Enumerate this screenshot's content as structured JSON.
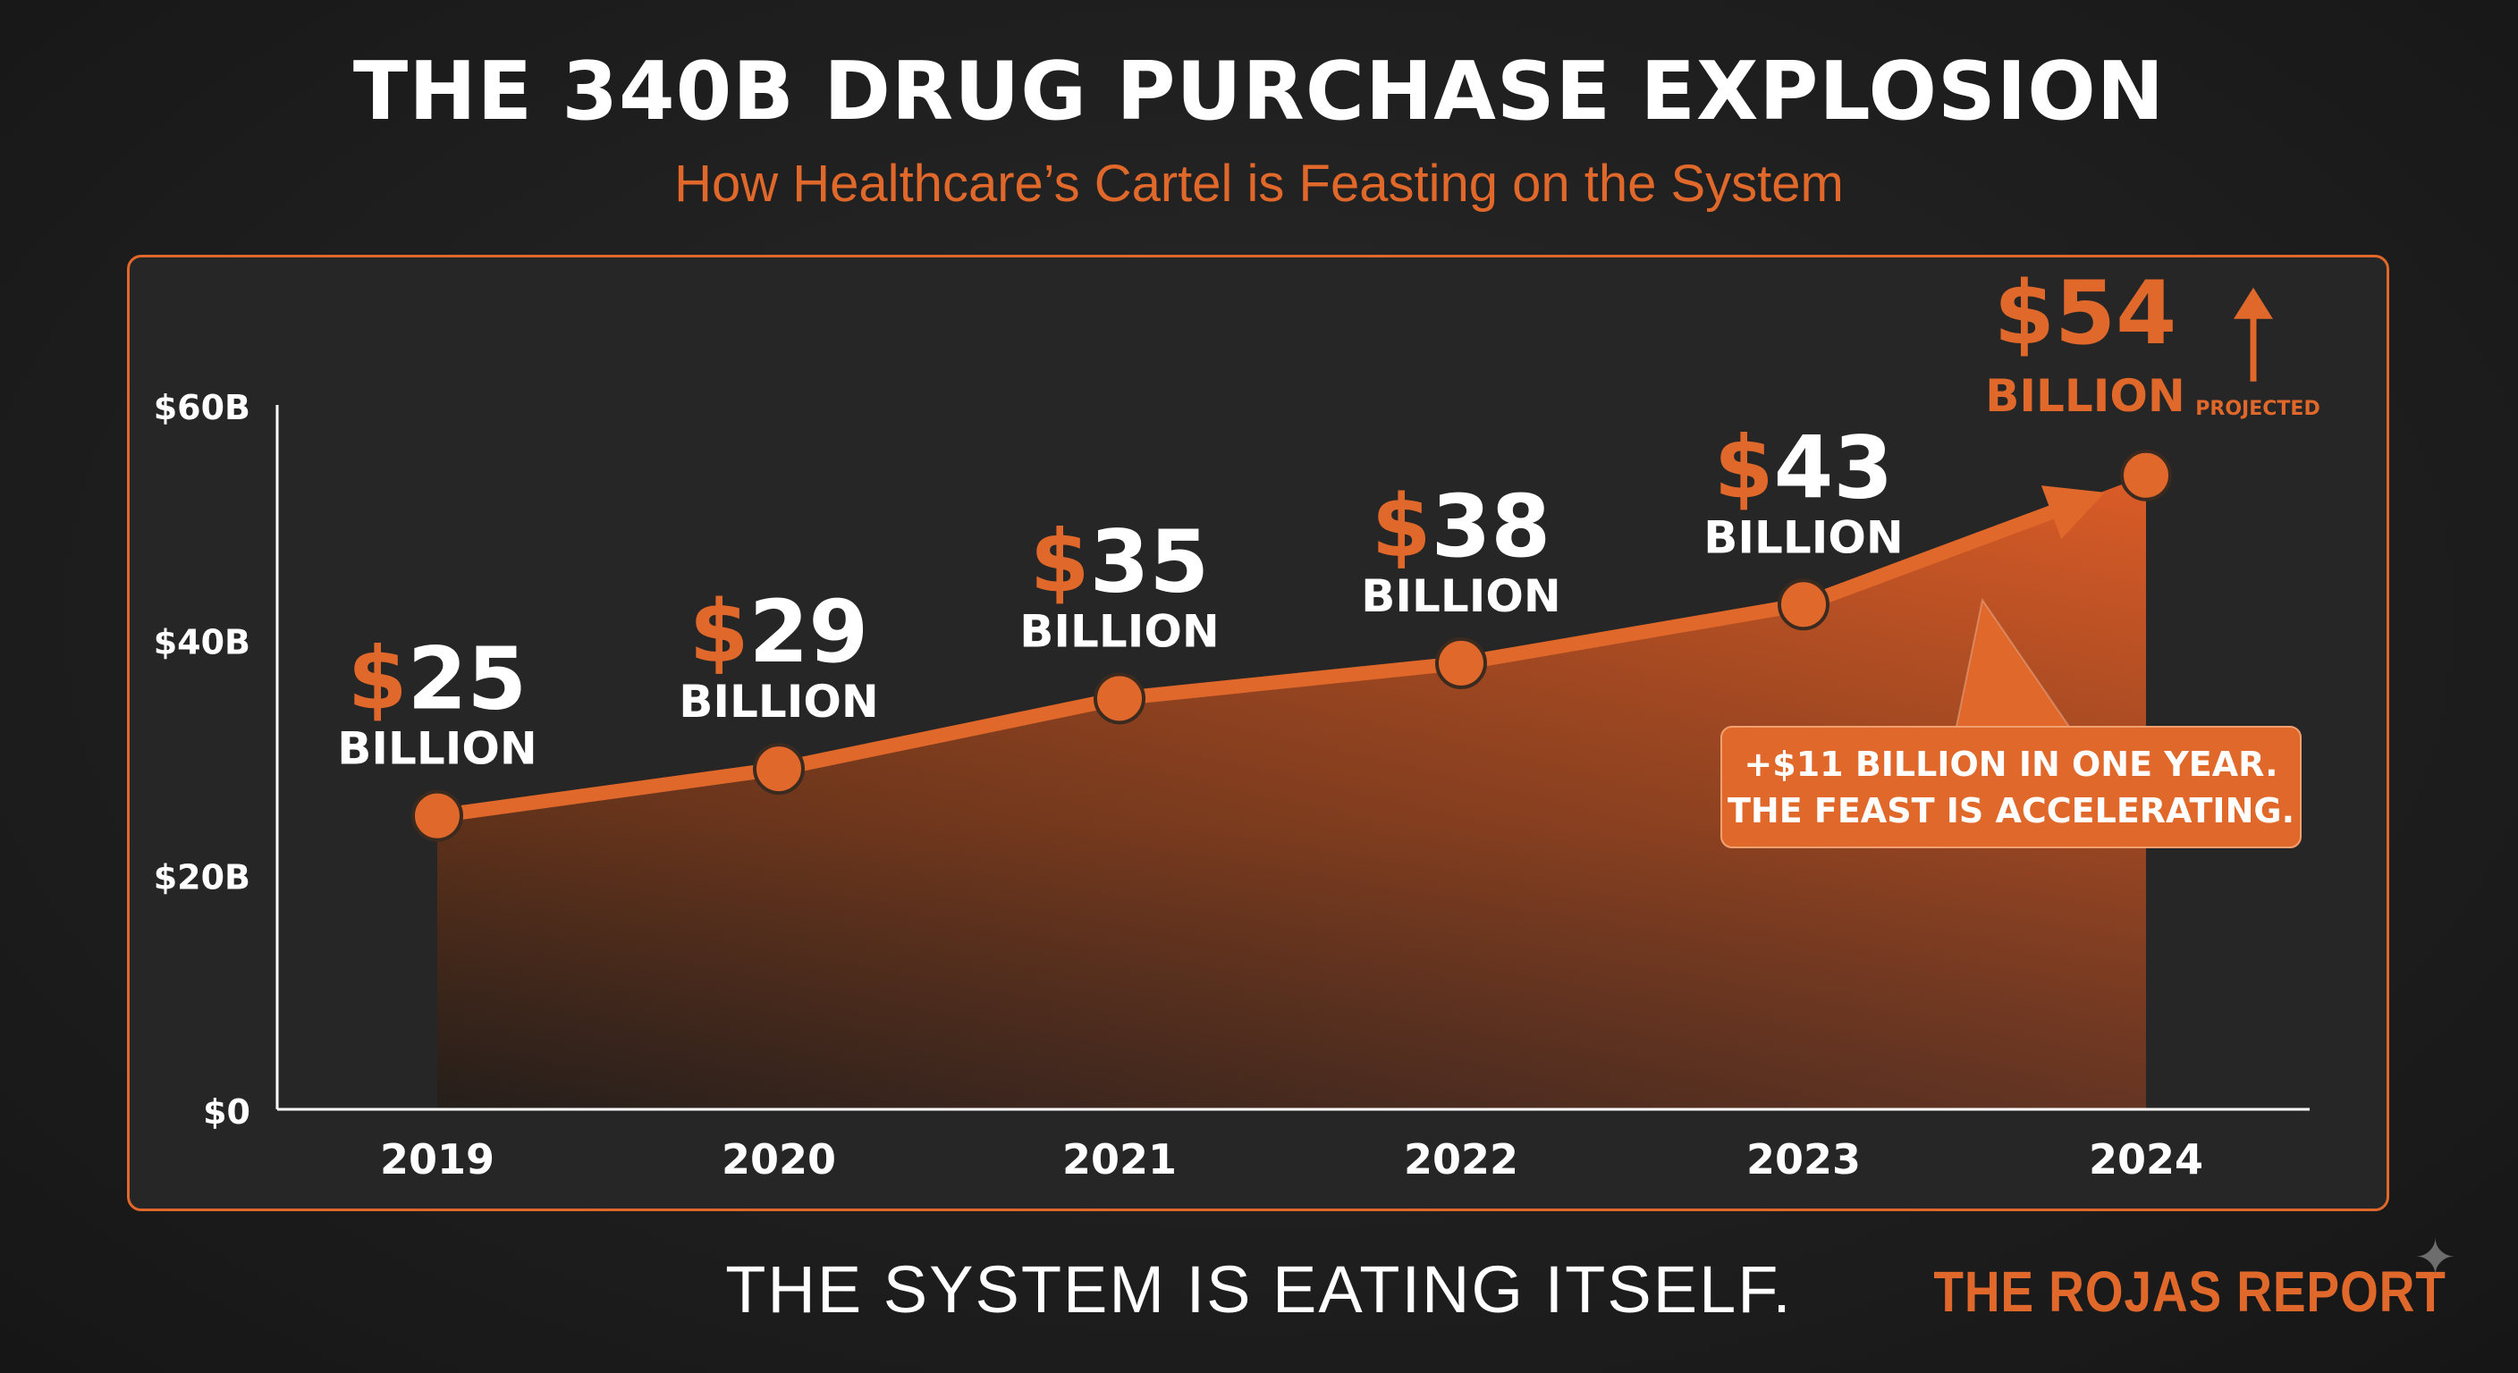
{
  "title": "THE 340B DRUG PURCHASE EXPLOSION",
  "subtitle": "How Healthcare’s Cartel is Feasting on the System",
  "footer": {
    "tagline": "THE SYSTEM IS EATING ITSELF.",
    "brand": "THE ROJAS REPORT"
  },
  "colors": {
    "accent": "#e0682a",
    "background": "#1f1f1f",
    "text": "#ffffff"
  },
  "chart_data": {
    "type": "area",
    "title": "THE 340B DRUG PURCHASE EXPLOSION",
    "xlabel": "",
    "ylabel": "",
    "categories": [
      "2019",
      "2020",
      "2021",
      "2022",
      "2023",
      "2024"
    ],
    "values": [
      25,
      29,
      35,
      38,
      43,
      54
    ],
    "ylim": [
      0,
      60
    ],
    "y_ticks": [
      0,
      20,
      40,
      60
    ],
    "y_tick_labels": [
      "$0",
      "$20B",
      "$40B",
      "$60B"
    ],
    "grid": false,
    "data_labels": [
      {
        "amount": "$25",
        "unit": "BILLION"
      },
      {
        "amount": "$29",
        "unit": "BILLION"
      },
      {
        "amount": "$35",
        "unit": "BILLION"
      },
      {
        "amount": "$38",
        "unit": "BILLION"
      },
      {
        "amount": "$43",
        "unit": "BILLION"
      },
      {
        "amount": "$54",
        "unit": "BILLION",
        "note": "PROJECTED"
      }
    ],
    "annotation": {
      "line1": "+$11 BILLION IN ONE YEAR.",
      "line2": "THE FEAST IS ACCELERATING."
    }
  }
}
